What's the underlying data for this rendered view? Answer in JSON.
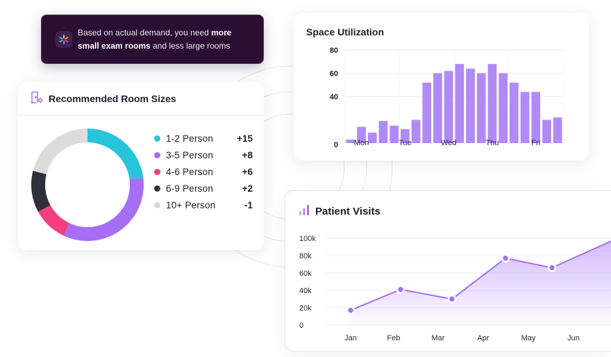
{
  "colors": {
    "purple": "#a66ef5",
    "purple_light": "#b28af7",
    "teal": "#28c4d9",
    "pink": "#f43f7e",
    "dark": "#2f3039",
    "gray": "#dcdcdc"
  },
  "insight": {
    "icon": "sparkle-icon",
    "text_prefix": "Based on actual demand, you need ",
    "text_bold": "more small exam rooms",
    "text_suffix": " and less large rooms"
  },
  "rooms": {
    "icon": "room-settings-icon",
    "title": "Recommended Room Sizes",
    "items": [
      {
        "label": "1-2  Person",
        "value": "+15",
        "color": "#28c4d9",
        "share": 0.23
      },
      {
        "label": "3-5  Person",
        "value": "+8",
        "color": "#a66ef5",
        "share": 0.34
      },
      {
        "label": "4-6  Person",
        "value": "+6",
        "color": "#f43f7e",
        "share": 0.1
      },
      {
        "label": "6-9  Person",
        "value": "+2",
        "color": "#2f3039",
        "share": 0.12
      },
      {
        "label": "10+  Person",
        "value": "-1",
        "color": "#dcd3ea",
        "share": 0.21,
        "ring_color": "#dcdcdc"
      }
    ]
  },
  "space": {
    "title": "Space Utilization"
  },
  "visits": {
    "icon": "bar-chart-icon",
    "title": "Patient Visits"
  },
  "chart_data": [
    {
      "type": "bar",
      "title": "Space Utilization",
      "ylim": [
        0,
        80
      ],
      "yticks": [
        "80",
        "60",
        "40",
        "0"
      ],
      "ytick_values": [
        80,
        60,
        40,
        0
      ],
      "x_labels": [
        {
          "label": "Mon",
          "index": 1
        },
        {
          "label": "Tue",
          "index": 5
        },
        {
          "label": "Wed",
          "index": 9
        },
        {
          "label": "Thu",
          "index": 13
        },
        {
          "label": "Fri",
          "index": 17
        }
      ],
      "values": [
        3,
        14,
        9,
        19,
        15,
        12,
        20,
        52,
        60,
        62,
        68,
        64,
        60,
        68,
        60,
        52,
        44,
        44,
        20,
        22
      ]
    },
    {
      "type": "area",
      "title": "Patient Visits",
      "categories": [
        "Jan",
        "Feb",
        "Mar",
        "Apr",
        "May",
        "Jun"
      ],
      "values": [
        17000,
        41000,
        30000,
        77000,
        66000,
        88000
      ],
      "end_value": 97000,
      "ylim": [
        0,
        100000
      ],
      "yticks": [
        "100k",
        "80k",
        "60k",
        "40k",
        "20k",
        "0"
      ],
      "ytick_values": [
        100000,
        80000,
        60000,
        40000,
        20000,
        0
      ]
    }
  ]
}
